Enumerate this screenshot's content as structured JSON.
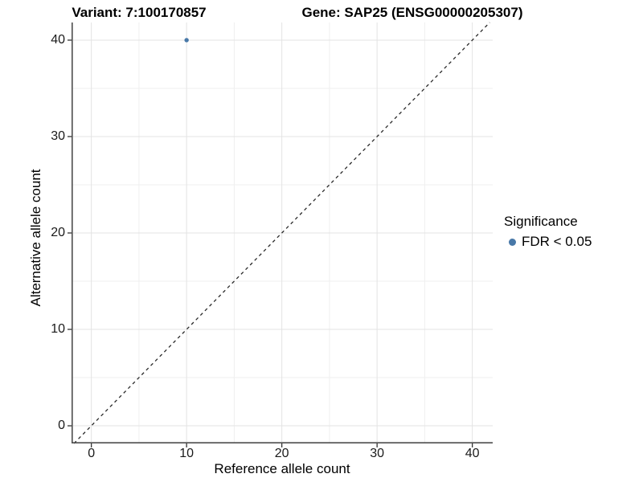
{
  "titles": {
    "variant": "Variant: 7:100170857",
    "gene": "Gene: SAP25 (ENSG00000205307)"
  },
  "chart_data": {
    "type": "scatter",
    "title_left": "Variant: 7:100170857",
    "title_right": "Gene: SAP25 (ENSG00000205307)",
    "xlabel": "Reference allele count",
    "ylabel": "Alternative allele count",
    "xlim": [
      -2.08,
      42.14
    ],
    "ylim": [
      -1.83,
      41.83
    ],
    "x_ticks": [
      0,
      10,
      20,
      30,
      40
    ],
    "y_ticks": [
      0,
      10,
      20,
      30,
      40
    ],
    "x_minor_gridlines": [
      5,
      15,
      25,
      35
    ],
    "y_minor_gridlines": [
      5,
      15,
      25,
      35
    ],
    "grid": true,
    "legend_position": "right",
    "reference_line": {
      "type": "identity y=x",
      "style": "dashed",
      "x1": -1.83,
      "y1": -1.83,
      "x2": 41.83,
      "y2": 41.83
    },
    "points": [
      {
        "x": 10,
        "y": 40,
        "series": "FDR < 0.05"
      }
    ],
    "legend": {
      "title": "Significance",
      "items": [
        {
          "label": "FDR < 0.05",
          "color": "#4878a8"
        }
      ]
    }
  },
  "colors": {
    "point": "#4878a8",
    "grid_major": "#e3e3e3",
    "grid_minor": "#efefef",
    "axis_line": "#4d4d4d",
    "tick_mark": "#333333",
    "dashed_line": "#2a2a2a",
    "background": "#ffffff"
  }
}
